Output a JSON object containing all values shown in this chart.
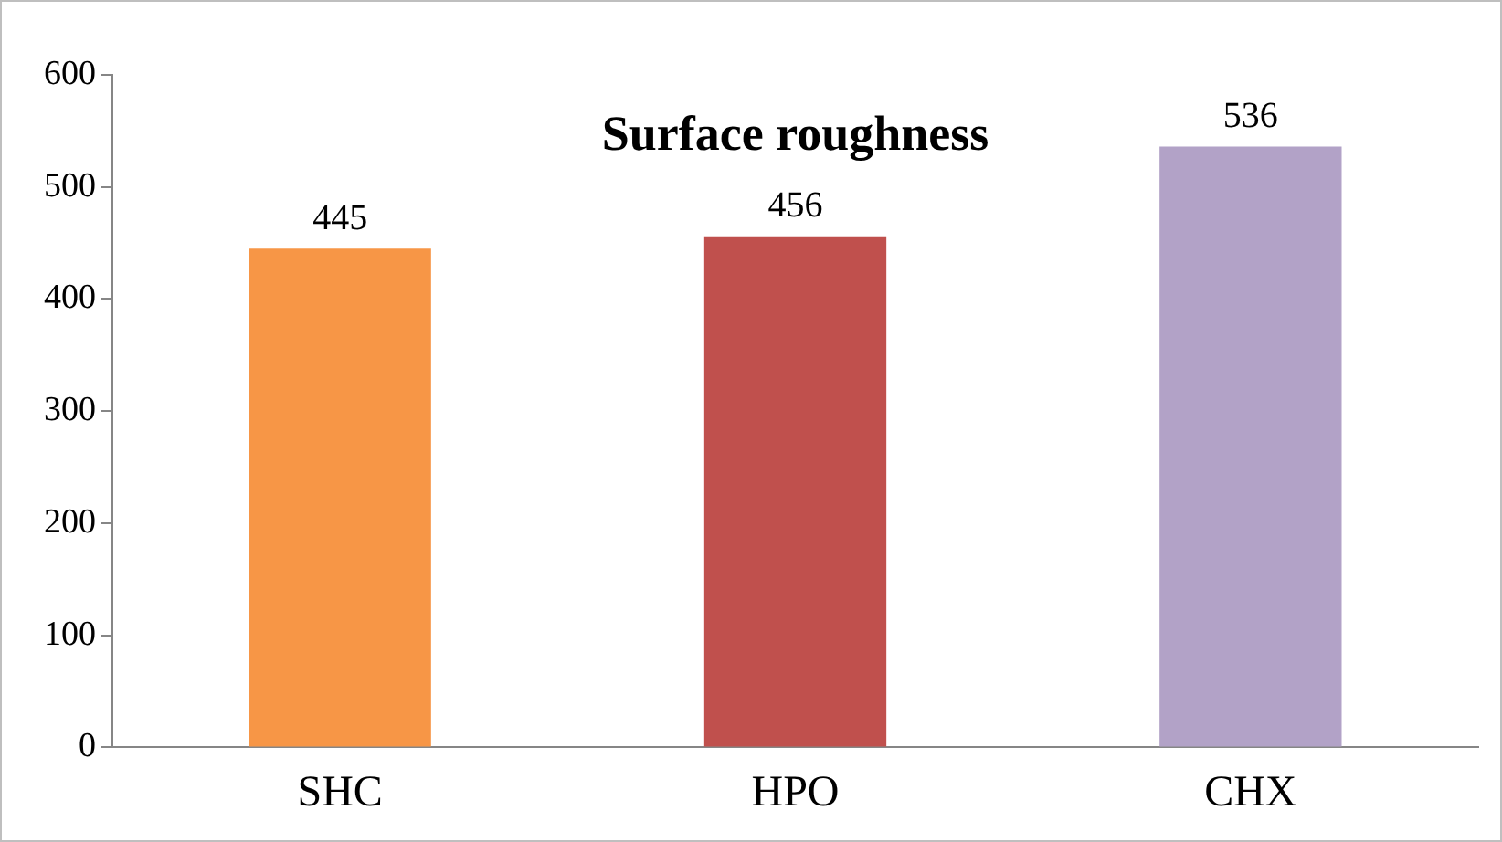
{
  "chart_data": {
    "type": "bar",
    "title": "Surface roughness",
    "categories": [
      "SHC",
      "HPO",
      "CHX"
    ],
    "values": [
      445,
      456,
      536
    ],
    "colors": [
      "#f79646",
      "#c0504d",
      "#b2a2c7"
    ],
    "ylim": [
      0,
      600
    ],
    "yticks": [
      0,
      100,
      200,
      300,
      400,
      500,
      600
    ],
    "grid": false,
    "data_labels": true
  }
}
